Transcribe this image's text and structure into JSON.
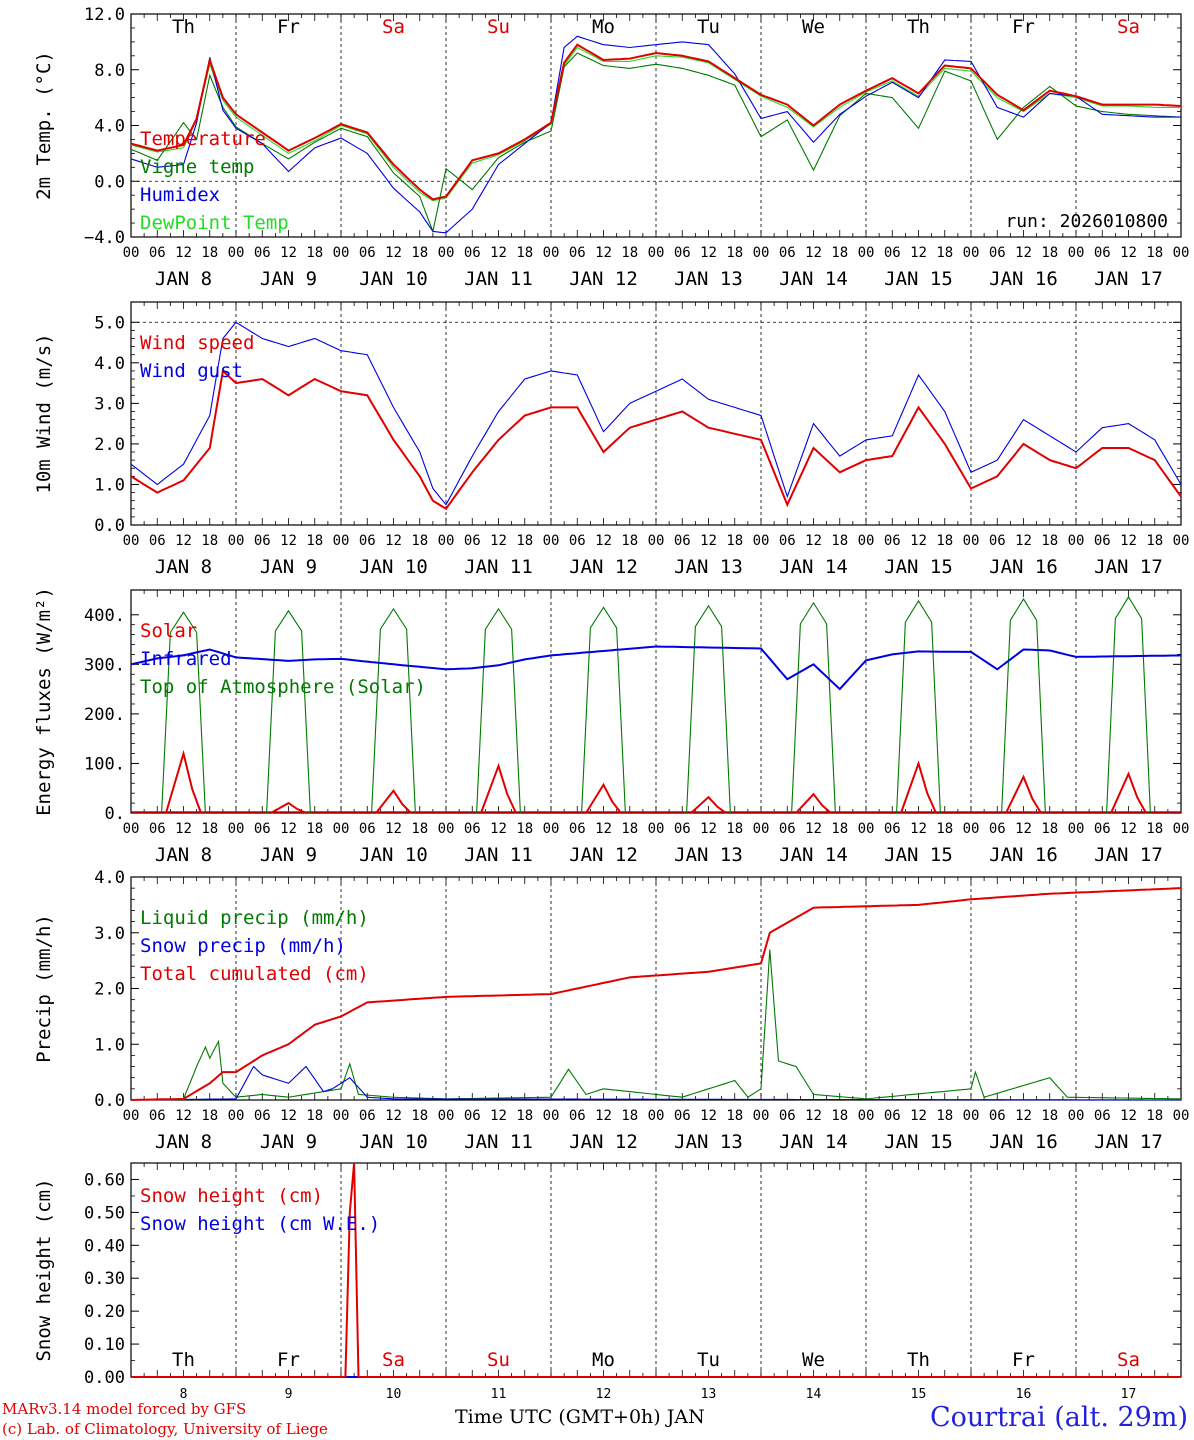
{
  "chart_data": [
    {
      "type": "line",
      "ylabel": "2m Temp. (°C)",
      "yticks": [
        "−4.0",
        "0.0",
        "4.0",
        "8.0",
        "12.0"
      ],
      "ylim": [
        -4,
        12
      ],
      "hline": 0,
      "run_label": "run: 2026010800",
      "legend_position": "top-left",
      "time_hours_from_jan8_00": [
        0,
        6,
        12,
        15,
        18,
        21,
        24,
        30,
        36,
        42,
        48,
        54,
        60,
        66,
        69,
        72,
        78,
        84,
        90,
        96,
        99,
        102,
        108,
        114,
        120,
        126,
        132,
        138,
        144,
        150,
        156,
        162,
        168,
        174,
        180,
        186,
        192,
        198,
        204,
        210,
        216,
        222,
        228,
        234,
        240
      ],
      "series": [
        {
          "name": "Temperature",
          "color": "#e00000",
          "values": [
            2.7,
            2.2,
            2.6,
            4.5,
            8.7,
            6.0,
            4.8,
            3.5,
            2.2,
            3.1,
            4.1,
            3.5,
            1.2,
            -0.6,
            -1.3,
            -1.1,
            1.5,
            2.0,
            3.0,
            4.2,
            8.5,
            9.8,
            8.7,
            8.8,
            9.2,
            9.0,
            8.6,
            7.4,
            6.2,
            5.5,
            4.0,
            5.5,
            6.5,
            7.4,
            6.3,
            8.3,
            8.1,
            6.2,
            5.1,
            6.5,
            6.1,
            5.5,
            5.5,
            5.5,
            5.4
          ]
        },
        {
          "name": "Vigne temp",
          "color": "#007a00",
          "values": [
            2.3,
            1.5,
            4.2,
            3.0,
            7.6,
            5.3,
            3.9,
            2.7,
            1.6,
            2.8,
            3.8,
            3.2,
            0.6,
            -1.1,
            -3.6,
            0.9,
            -0.6,
            1.7,
            2.8,
            3.6,
            8.2,
            9.2,
            8.3,
            8.1,
            8.4,
            8.1,
            7.6,
            6.9,
            3.2,
            4.4,
            0.8,
            4.7,
            6.3,
            6.0,
            3.8,
            7.9,
            7.2,
            3.0,
            5.3,
            6.8,
            5.4,
            5.0,
            4.8,
            4.7,
            4.6
          ]
        },
        {
          "name": "Humidex",
          "color": "#0000e0",
          "values": [
            1.6,
            1.0,
            1.2,
            4.2,
            8.9,
            5.1,
            3.8,
            2.7,
            0.7,
            2.4,
            3.1,
            2.0,
            -0.5,
            -2.2,
            -3.6,
            -3.7,
            -2.0,
            1.2,
            2.7,
            4.2,
            9.6,
            10.4,
            9.8,
            9.6,
            9.8,
            10.0,
            9.8,
            7.7,
            4.5,
            5.0,
            2.8,
            4.8,
            6.1,
            7.1,
            6.0,
            8.7,
            8.6,
            5.3,
            4.6,
            6.3,
            6.1,
            4.8,
            4.7,
            4.6,
            4.6
          ]
        },
        {
          "name": "DewPoint Temp",
          "color": "#22dd22",
          "values": [
            2.6,
            2.1,
            2.4,
            4.4,
            8.4,
            5.8,
            4.6,
            3.3,
            2.0,
            2.9,
            4.0,
            3.4,
            1.0,
            -0.8,
            -1.4,
            -1.2,
            1.3,
            1.9,
            2.9,
            4.1,
            8.3,
            9.6,
            8.6,
            8.6,
            9.0,
            8.9,
            8.5,
            7.3,
            6.1,
            5.3,
            3.9,
            5.3,
            6.4,
            7.2,
            6.1,
            8.1,
            7.9,
            6.0,
            5.0,
            6.3,
            6.0,
            5.4,
            5.4,
            5.3,
            5.3
          ]
        }
      ]
    },
    {
      "type": "line",
      "ylabel": "10m Wind (m/s)",
      "yticks": [
        "0.0",
        "1.0",
        "2.0",
        "3.0",
        "4.0",
        "5.0"
      ],
      "ylim": [
        0,
        5.5
      ],
      "hline": 5,
      "legend_position": "top-left",
      "time_hours_from_jan8_00": [
        0,
        6,
        12,
        18,
        21,
        24,
        30,
        36,
        42,
        48,
        54,
        60,
        66,
        69,
        72,
        78,
        84,
        90,
        96,
        102,
        108,
        114,
        120,
        126,
        132,
        144,
        150,
        156,
        162,
        168,
        174,
        180,
        186,
        192,
        198,
        204,
        210,
        216,
        222,
        228,
        234,
        240
      ],
      "series": [
        {
          "name": "Wind speed",
          "color": "#e00000",
          "values": [
            1.2,
            0.8,
            1.1,
            1.9,
            3.8,
            3.5,
            3.6,
            3.2,
            3.6,
            3.3,
            3.2,
            2.1,
            1.2,
            0.6,
            0.4,
            1.3,
            2.1,
            2.7,
            2.9,
            2.9,
            1.8,
            2.4,
            2.6,
            2.8,
            2.4,
            2.1,
            0.5,
            1.9,
            1.3,
            1.6,
            1.7,
            2.9,
            2.0,
            0.9,
            1.2,
            2.0,
            1.6,
            1.4,
            1.9,
            1.9,
            1.6,
            0.7
          ]
        },
        {
          "name": "Wind gust",
          "color": "#0000e0",
          "values": [
            1.5,
            1.0,
            1.5,
            2.7,
            4.6,
            5.0,
            4.6,
            4.4,
            4.6,
            4.3,
            4.2,
            2.9,
            1.8,
            0.9,
            0.5,
            1.7,
            2.8,
            3.6,
            3.8,
            3.7,
            2.3,
            3.0,
            3.3,
            3.6,
            3.1,
            2.7,
            0.7,
            2.5,
            1.7,
            2.1,
            2.2,
            3.7,
            2.8,
            1.3,
            1.6,
            2.6,
            2.2,
            1.8,
            2.4,
            2.5,
            2.1,
            1.0
          ]
        }
      ]
    },
    {
      "type": "line",
      "ylabel": "Energy fluxes (W/m²)",
      "yticks": [
        "0.",
        "100.",
        "200.",
        "300.",
        "400."
      ],
      "ylim": [
        0,
        450
      ],
      "legend_position": "top-left",
      "day_peaks": {
        "solar": [
          120,
          20,
          45,
          95,
          57,
          32,
          38,
          100,
          73,
          79
        ],
        "top_of_atmosphere": [
          405,
          408,
          412,
          412,
          415,
          418,
          424,
          428,
          432,
          436
        ]
      },
      "infrared_points_hours": [
        0,
        6,
        12,
        18,
        24,
        36,
        42,
        48,
        60,
        72,
        78,
        84,
        90,
        96,
        120,
        144,
        150,
        156,
        162,
        168,
        174,
        180,
        192,
        198,
        204,
        210,
        216,
        240
      ],
      "infrared_values": [
        300,
        312,
        318,
        330,
        314,
        307,
        310,
        311,
        300,
        290,
        292,
        298,
        310,
        318,
        336,
        332,
        270,
        300,
        250,
        308,
        320,
        326,
        325,
        290,
        330,
        328,
        315,
        318
      ],
      "series": [
        {
          "name": "Solar",
          "color": "#e00000"
        },
        {
          "name": "Infrared",
          "color": "#0000e0"
        },
        {
          "name": "Top of Atmosphere (Solar)",
          "color": "#007a00"
        }
      ]
    },
    {
      "type": "line",
      "ylabel": "Precip (mm/h)",
      "yticks": [
        "0.0",
        "1.0",
        "2.0",
        "3.0",
        "4.0"
      ],
      "ylim": [
        0,
        4
      ],
      "legend_position": "top-left",
      "series": [
        {
          "name": "Liquid precip (mm/h)",
          "color": "#007a00",
          "points": [
            [
              0,
              0
            ],
            [
              12,
              0.02
            ],
            [
              15,
              0.6
            ],
            [
              17,
              0.95
            ],
            [
              18,
              0.75
            ],
            [
              20,
              1.05
            ],
            [
              21,
              0.3
            ],
            [
              24,
              0.05
            ],
            [
              30,
              0.1
            ],
            [
              36,
              0.05
            ],
            [
              48,
              0.2
            ],
            [
              50,
              0.65
            ],
            [
              52,
              0.1
            ],
            [
              60,
              0.05
            ],
            [
              72,
              0.02
            ],
            [
              96,
              0.05
            ],
            [
              100,
              0.55
            ],
            [
              104,
              0.1
            ],
            [
              108,
              0.2
            ],
            [
              120,
              0.1
            ],
            [
              126,
              0.05
            ],
            [
              138,
              0.35
            ],
            [
              141,
              0.05
            ],
            [
              144,
              0.2
            ],
            [
              146,
              2.7
            ],
            [
              148,
              0.7
            ],
            [
              152,
              0.6
            ],
            [
              156,
              0.1
            ],
            [
              168,
              0.02
            ],
            [
              192,
              0.2
            ],
            [
              193,
              0.5
            ],
            [
              195,
              0.05
            ],
            [
              210,
              0.4
            ],
            [
              214,
              0.05
            ],
            [
              240,
              0.02
            ]
          ]
        },
        {
          "name": "Snow precip (mm/h)",
          "color": "#0000e0",
          "points": [
            [
              0,
              0
            ],
            [
              24,
              0.02
            ],
            [
              28,
              0.6
            ],
            [
              30,
              0.45
            ],
            [
              36,
              0.3
            ],
            [
              40,
              0.6
            ],
            [
              44,
              0.15
            ],
            [
              46,
              0.2
            ],
            [
              50,
              0.4
            ],
            [
              54,
              0.05
            ],
            [
              60,
              0.02
            ],
            [
              240,
              0
            ]
          ]
        },
        {
          "name": "Total cumulated (cm)",
          "color": "#e00000",
          "points": [
            [
              0,
              0
            ],
            [
              12,
              0.02
            ],
            [
              18,
              0.3
            ],
            [
              21,
              0.5
            ],
            [
              24,
              0.5
            ],
            [
              30,
              0.8
            ],
            [
              36,
              1.0
            ],
            [
              42,
              1.35
            ],
            [
              48,
              1.5
            ],
            [
              54,
              1.75
            ],
            [
              72,
              1.85
            ],
            [
              96,
              1.9
            ],
            [
              102,
              2.0
            ],
            [
              114,
              2.2
            ],
            [
              132,
              2.3
            ],
            [
              144,
              2.45
            ],
            [
              146,
              3.0
            ],
            [
              156,
              3.45
            ],
            [
              180,
              3.5
            ],
            [
              192,
              3.6
            ],
            [
              210,
              3.7
            ],
            [
              240,
              3.8
            ]
          ]
        }
      ]
    },
    {
      "type": "line",
      "ylabel": "Snow height (cm)",
      "yticks": [
        "0.00",
        "0.10",
        "0.20",
        "0.30",
        "0.40",
        "0.50",
        "0.60"
      ],
      "ylim": [
        0,
        0.65
      ],
      "legend_position": "top-left",
      "series": [
        {
          "name": "Snow height (cm)",
          "color": "#e00000",
          "points": [
            [
              0,
              0
            ],
            [
              49.5,
              0
            ],
            [
              50,
              0.5
            ],
            [
              50.5,
              0.65
            ],
            [
              51.5,
              0.65
            ],
            [
              52,
              0
            ],
            [
              240,
              0
            ]
          ]
        },
        {
          "name": "Snow height (cm W.E.)",
          "color": "#0000e0",
          "points": [
            [
              0,
              0
            ],
            [
              240,
              0
            ]
          ]
        }
      ]
    }
  ],
  "days": {
    "weekday_labels": [
      "Th",
      "Fr",
      "Sa",
      "Su",
      "Mo",
      "Tu",
      "We",
      "Th",
      "Fr",
      "Sa"
    ],
    "weekday_colors": [
      "#000000",
      "#000000",
      "#e00000",
      "#e00000",
      "#000000",
      "#000000",
      "#000000",
      "#000000",
      "#000000",
      "#e00000"
    ],
    "date_labels": [
      "JAN  8",
      "JAN  9",
      "JAN 10",
      "JAN 11",
      "JAN 12",
      "JAN 13",
      "JAN 14",
      "JAN 15",
      "JAN 16",
      "JAN 17"
    ],
    "day_numbers": [
      "8",
      "9",
      "10",
      "11",
      "12",
      "13",
      "14",
      "15",
      "16",
      "17"
    ],
    "hour_labels": [
      "00",
      "06",
      "12",
      "18"
    ],
    "end_hour_label": "00"
  },
  "footer": {
    "credit_line1": "MARv3.14 model forced by GFS",
    "credit_line2": "(c) Lab. of Climatology, University of Liege",
    "xaxis_label": "Time UTC (GMT+0h) JAN",
    "station": "Courtrai (alt. 29m)"
  }
}
